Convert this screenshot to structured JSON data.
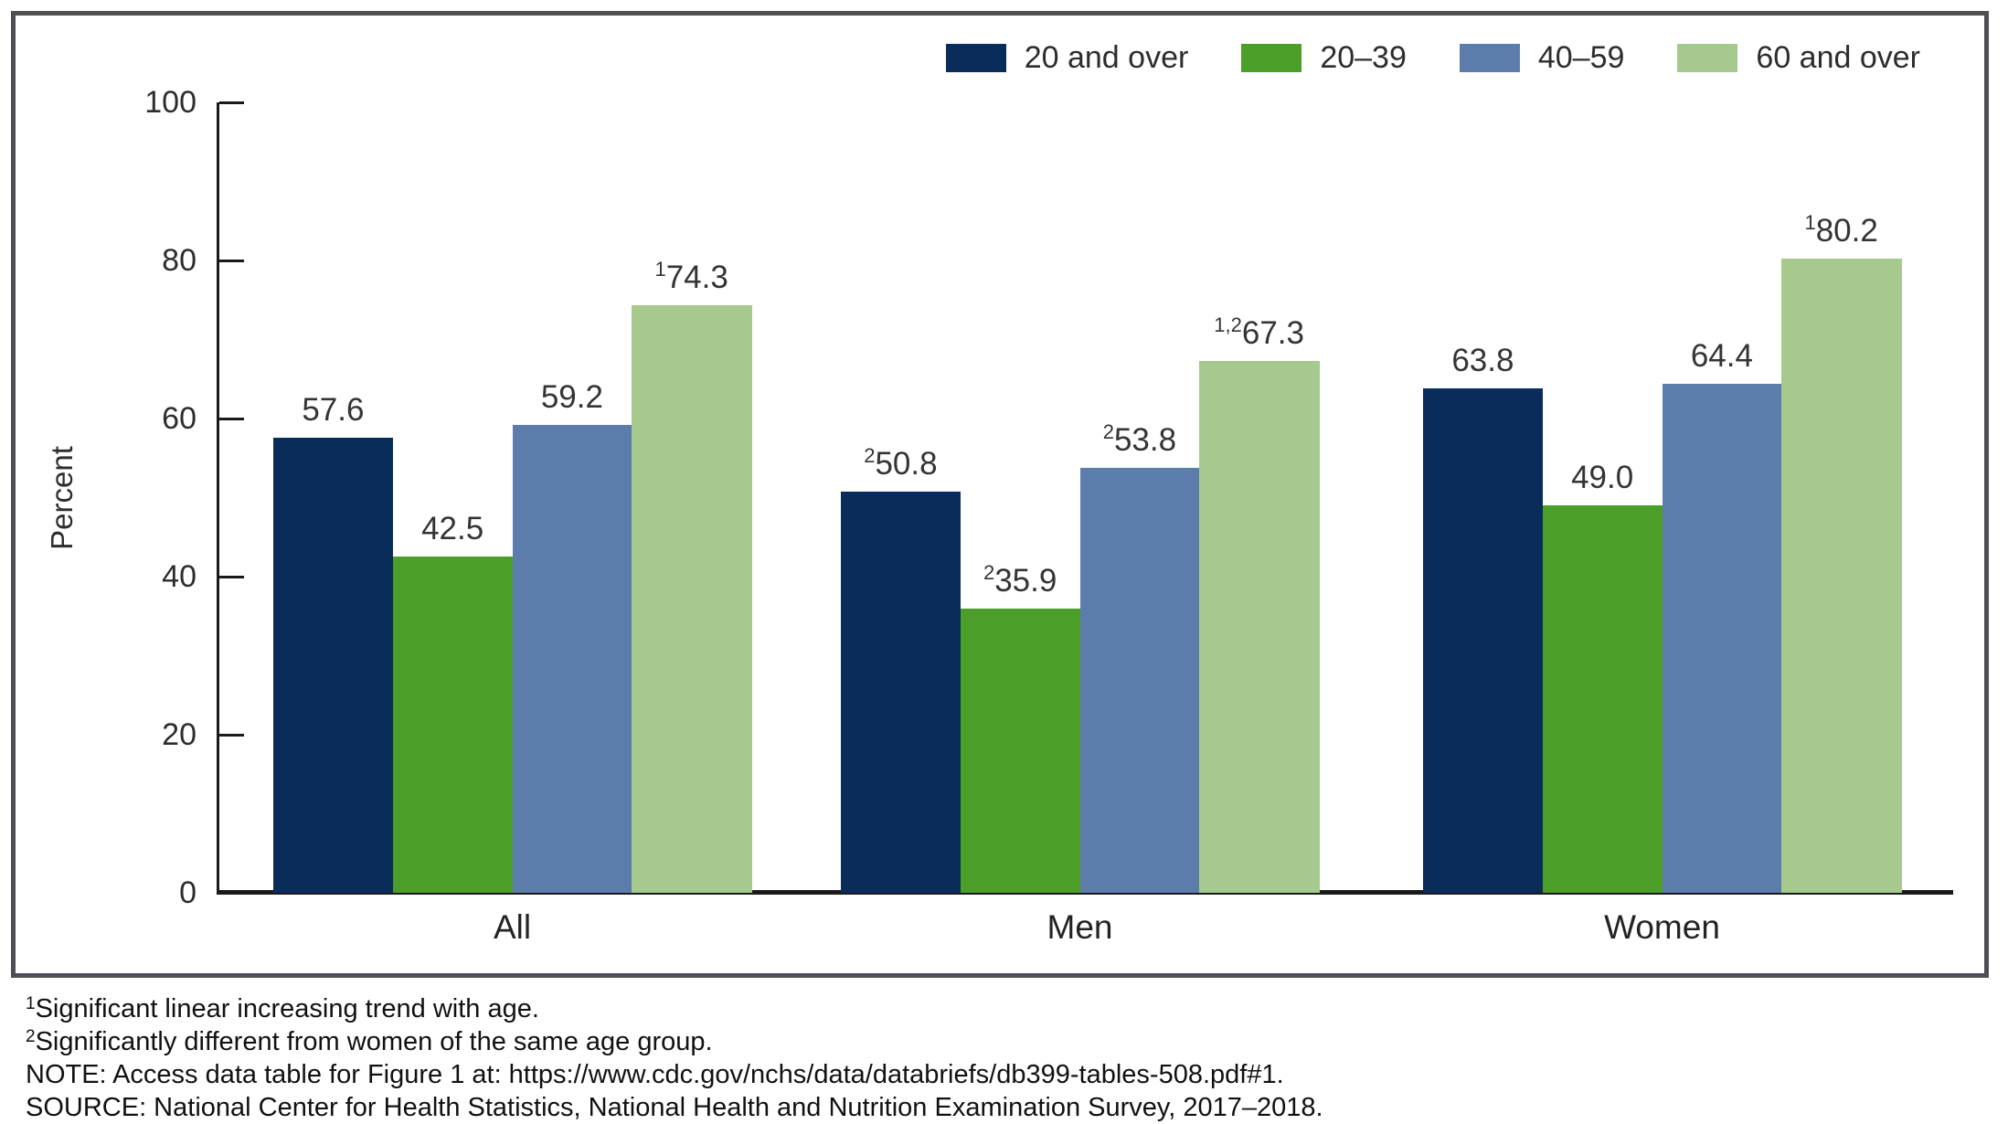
{
  "chart_data": {
    "type": "bar",
    "title": "",
    "ylabel": "Percent",
    "xlabel": "",
    "ylim": [
      0,
      100
    ],
    "yticks": [
      0,
      20,
      40,
      60,
      80,
      100
    ],
    "grid": false,
    "legend_position": "top-right",
    "categories": [
      "All",
      "Men",
      "Women"
    ],
    "series": [
      {
        "name": "20 and over",
        "color": "#0a2c5a",
        "values": [
          57.6,
          50.8,
          63.8
        ],
        "superscripts": [
          "",
          "2",
          ""
        ]
      },
      {
        "name": "20–39",
        "color": "#4b9e27",
        "values": [
          42.5,
          35.9,
          49.0
        ],
        "superscripts": [
          "",
          "2",
          ""
        ]
      },
      {
        "name": "40–59",
        "color": "#5c7dab",
        "values": [
          59.2,
          53.8,
          64.4
        ],
        "superscripts": [
          "",
          "2",
          ""
        ]
      },
      {
        "name": "60 and over",
        "color": "#a6c98e",
        "values": [
          74.3,
          67.3,
          80.2
        ],
        "superscripts": [
          "1",
          "1,2",
          "1"
        ]
      }
    ],
    "value_label_decimals": 1
  },
  "footnotes": [
    {
      "sup": "1",
      "text": "Significant linear increasing trend with age."
    },
    {
      "sup": "2",
      "text": "Significantly different from women of the same age group."
    },
    {
      "sup": "",
      "text": "NOTE: Access data table for Figure 1 at: https://www.cdc.gov/nchs/data/databriefs/db399-tables-508.pdf#1."
    },
    {
      "sup": "",
      "text": "SOURCE: National Center for Health Statistics, National Health and Nutrition Examination Survey, 2017–2018."
    }
  ]
}
